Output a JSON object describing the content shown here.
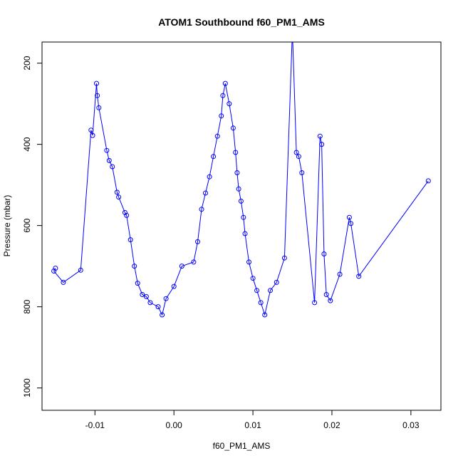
{
  "chart_data": {
    "type": "scatter",
    "title": "ATOM1 Southbound f60_PM1_AMS",
    "xlabel": "f60_PM1_AMS",
    "ylabel": "Pressure (mbar)",
    "xlim": [
      -0.0167,
      0.0338
    ],
    "ylim": [
      1055,
      148
    ],
    "y_reversed": true,
    "x_ticks": [
      -0.01,
      0.0,
      0.01,
      0.02,
      0.03
    ],
    "x_tick_labels": [
      "-0.01",
      "0.00",
      "0.01",
      "0.02",
      "0.03"
    ],
    "y_ticks": [
      200,
      400,
      600,
      800,
      1000
    ],
    "y_tick_labels": [
      "200",
      "400",
      "600",
      "800",
      "1000"
    ],
    "grid": false,
    "legend": "none",
    "markers": "open-circles-joined-by-lines",
    "color": "#0000ff",
    "series": [
      {
        "points": [
          [
            -0.015,
            705
          ],
          [
            -0.0152,
            712
          ],
          [
            -0.014,
            740
          ],
          [
            -0.0118,
            710
          ],
          [
            -0.0105,
            365
          ],
          [
            -0.0103,
            378
          ],
          [
            -0.0098,
            250
          ],
          [
            -0.0097,
            280
          ],
          [
            -0.0095,
            310
          ],
          [
            -0.0085,
            415
          ],
          [
            -0.0082,
            440
          ],
          [
            -0.0078,
            455
          ],
          [
            -0.0072,
            518
          ],
          [
            -0.007,
            530
          ],
          [
            -0.0062,
            568
          ],
          [
            -0.006,
            575
          ],
          [
            -0.0055,
            635
          ],
          [
            -0.005,
            700
          ],
          [
            -0.0046,
            742
          ],
          [
            -0.004,
            770
          ],
          [
            -0.0035,
            775
          ],
          [
            -0.003,
            790
          ],
          [
            -0.002,
            800
          ],
          [
            -0.0015,
            820
          ],
          [
            -0.001,
            780
          ],
          [
            0.0,
            750
          ],
          [
            0.001,
            700
          ],
          [
            0.0025,
            690
          ],
          [
            0.003,
            640
          ],
          [
            0.0035,
            560
          ],
          [
            0.004,
            520
          ],
          [
            0.0045,
            480
          ],
          [
            0.005,
            430
          ],
          [
            0.0055,
            380
          ],
          [
            0.006,
            330
          ],
          [
            0.0062,
            280
          ],
          [
            0.0065,
            250
          ],
          [
            0.007,
            300
          ],
          [
            0.0075,
            360
          ],
          [
            0.0078,
            420
          ],
          [
            0.008,
            470
          ],
          [
            0.0082,
            510
          ],
          [
            0.0085,
            540
          ],
          [
            0.0088,
            580
          ],
          [
            0.009,
            620
          ],
          [
            0.0095,
            690
          ],
          [
            0.01,
            730
          ],
          [
            0.0105,
            760
          ],
          [
            0.011,
            790
          ],
          [
            0.0115,
            820
          ],
          [
            0.0122,
            760
          ],
          [
            0.013,
            740
          ],
          [
            0.014,
            680
          ],
          [
            0.015,
            120
          ],
          [
            0.0155,
            420
          ],
          [
            0.0158,
            430
          ],
          [
            0.0162,
            470
          ],
          [
            0.0178,
            790
          ],
          [
            0.0185,
            380
          ],
          [
            0.0187,
            400
          ],
          [
            0.019,
            670
          ],
          [
            0.0193,
            770
          ],
          [
            0.0198,
            785
          ],
          [
            0.021,
            720
          ],
          [
            0.0222,
            580
          ],
          [
            0.0224,
            595
          ],
          [
            0.0234,
            725
          ],
          [
            0.0322,
            490
          ]
        ]
      }
    ]
  }
}
